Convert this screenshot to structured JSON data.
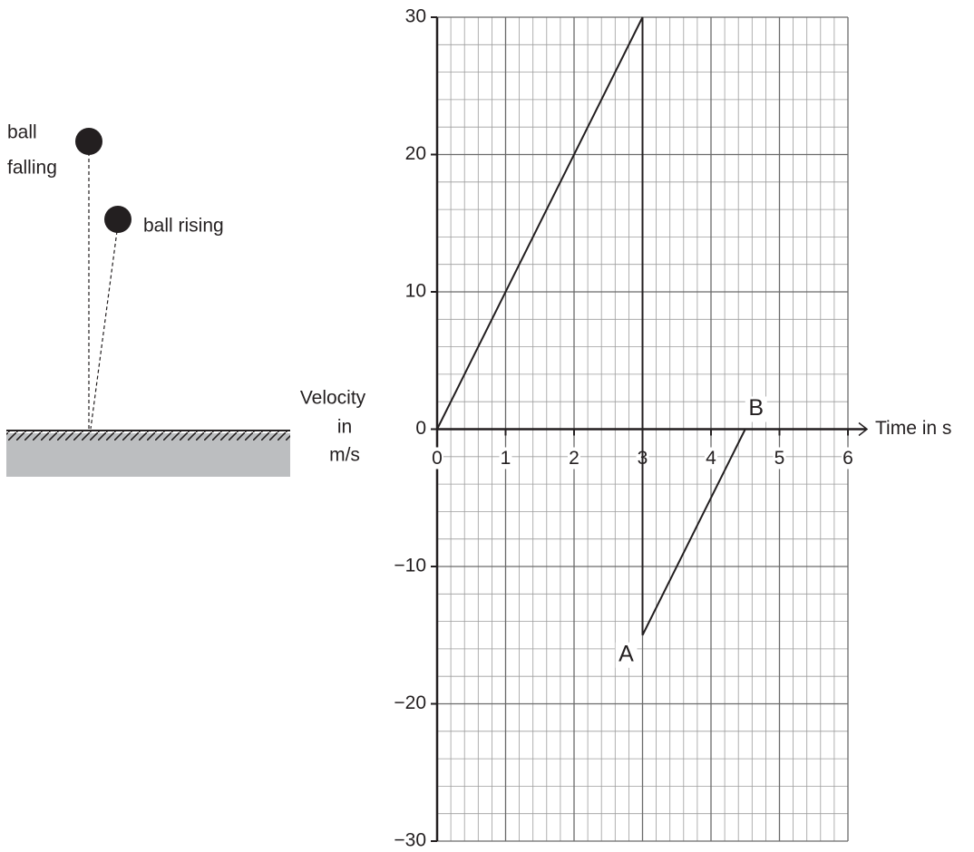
{
  "diagram": {
    "falling_label": [
      "ball",
      "falling"
    ],
    "rising_label": "ball rising"
  },
  "chart_data": {
    "type": "line",
    "x_label": "Time in s",
    "y_label": [
      "Velocity",
      "in",
      "m/s"
    ],
    "x": [
      0,
      3,
      3,
      4.5
    ],
    "values": [
      0,
      30,
      -15,
      0
    ],
    "point_labels": [
      null,
      null,
      "A",
      "B"
    ],
    "color": "#231f20",
    "xlim": [
      0,
      6
    ],
    "ylim": [
      -30,
      30
    ],
    "xticks": [
      0,
      1,
      2,
      3,
      4,
      5,
      6
    ],
    "yticks": [
      {
        "value": -30,
        "label": "−30"
      },
      {
        "value": -20,
        "label": "−20"
      },
      {
        "value": -10,
        "label": "−10"
      },
      0,
      10,
      20,
      30
    ],
    "grid": true
  }
}
